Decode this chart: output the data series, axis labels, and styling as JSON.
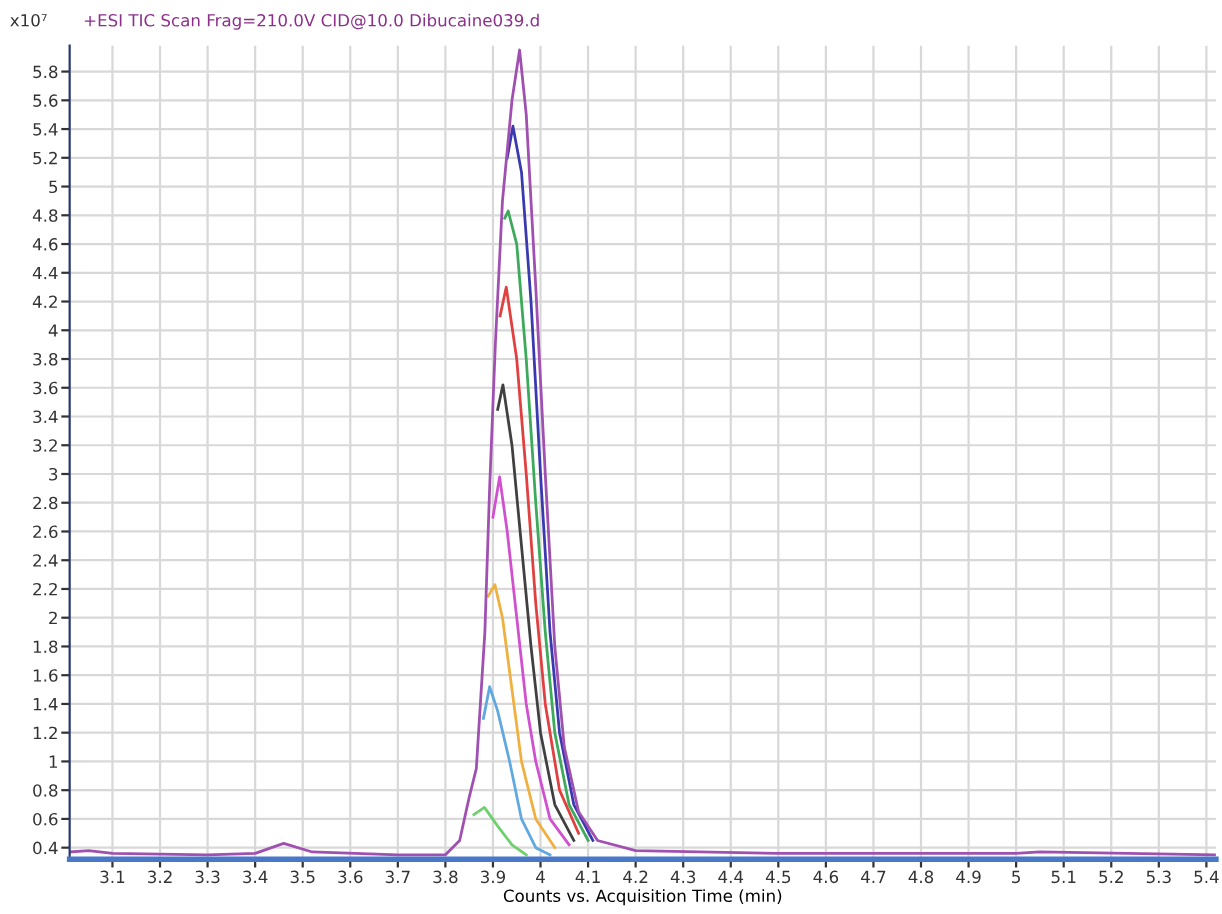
{
  "chart_data": {
    "type": "line",
    "title": "+ESI TIC Scan Frag=210.0V CID@10.0 Dibucaine039.d",
    "ylabel": "x10⁷",
    "xlabel": "Counts vs. Acquisition Time (min)",
    "xlim": [
      3.01,
      5.42
    ],
    "ylim": [
      0.32,
      5.98
    ],
    "xticks": [
      3.1,
      3.2,
      3.3,
      3.4,
      3.5,
      3.6,
      3.7,
      3.8,
      3.9,
      4,
      4.1,
      4.2,
      4.3,
      4.4,
      4.5,
      4.6,
      4.7,
      4.8,
      4.9,
      5,
      5.1,
      5.2,
      5.3,
      5.4
    ],
    "yticks": [
      0.4,
      0.6,
      0.8,
      1,
      1.2,
      1.4,
      1.6,
      1.8,
      2,
      2.2,
      2.4,
      2.6,
      2.8,
      3,
      3.2,
      3.4,
      3.6,
      3.8,
      4,
      4.2,
      4.4,
      4.6,
      4.8,
      5,
      5.2,
      5.4,
      5.6,
      5.8
    ],
    "grid": true,
    "legend": false,
    "marker": "none",
    "line_style": "solid",
    "series": [
      {
        "color": "#70d070",
        "x": [
          3.86,
          3.882,
          3.91,
          3.94,
          3.97
        ],
        "values": [
          0.63,
          0.68,
          0.55,
          0.42,
          0.35
        ]
      },
      {
        "color": "#60a8e0",
        "x": [
          3.88,
          3.893,
          3.91,
          3.935,
          3.96,
          3.99,
          4.02
        ],
        "values": [
          1.3,
          1.52,
          1.35,
          1.0,
          0.6,
          0.4,
          0.35
        ]
      },
      {
        "color": "#f0b040",
        "x": [
          3.89,
          3.904,
          3.92,
          3.94,
          3.96,
          3.99,
          4.03
        ],
        "values": [
          2.15,
          2.23,
          2.0,
          1.5,
          1.0,
          0.6,
          0.4
        ]
      },
      {
        "color": "#d050d0",
        "x": [
          3.9,
          3.914,
          3.93,
          3.95,
          3.97,
          3.99,
          4.02,
          4.06
        ],
        "values": [
          2.7,
          2.98,
          2.6,
          2.0,
          1.4,
          1.0,
          0.6,
          0.42
        ]
      },
      {
        "color": "#404040",
        "x": [
          3.91,
          3.921,
          3.94,
          3.96,
          3.98,
          4.0,
          4.03,
          4.07
        ],
        "values": [
          3.45,
          3.62,
          3.2,
          2.5,
          1.8,
          1.2,
          0.7,
          0.45
        ]
      },
      {
        "color": "#e04040",
        "x": [
          3.915,
          3.928,
          3.95,
          3.97,
          3.99,
          4.01,
          4.04,
          4.08
        ],
        "values": [
          4.1,
          4.3,
          3.8,
          3.0,
          2.1,
          1.4,
          0.8,
          0.5
        ]
      },
      {
        "color": "#3caa5a",
        "x": [
          3.925,
          3.932,
          3.95,
          3.97,
          3.99,
          4.01,
          4.03,
          4.06,
          4.1
        ],
        "values": [
          4.78,
          4.83,
          4.6,
          3.8,
          2.8,
          1.9,
          1.2,
          0.7,
          0.45
        ]
      },
      {
        "color": "#3a3ab0",
        "x": [
          3.93,
          3.942,
          3.96,
          3.98,
          4.0,
          4.02,
          4.04,
          4.07,
          4.11
        ],
        "values": [
          5.2,
          5.42,
          5.1,
          4.2,
          3.0,
          1.9,
          1.2,
          0.7,
          0.45
        ]
      },
      {
        "color": "#a050b0",
        "x": [
          3.01,
          3.05,
          3.1,
          3.3,
          3.4,
          3.46,
          3.52,
          3.7,
          3.8,
          3.83,
          3.85,
          3.865,
          3.883,
          3.893,
          3.905,
          3.92,
          3.94,
          3.956,
          3.97,
          3.99,
          4.01,
          4.03,
          4.05,
          4.08,
          4.12,
          4.2,
          4.5,
          5.0,
          5.05,
          5.42
        ],
        "values": [
          0.37,
          0.38,
          0.36,
          0.35,
          0.36,
          0.43,
          0.37,
          0.35,
          0.35,
          0.45,
          0.75,
          0.95,
          1.9,
          2.9,
          3.9,
          4.9,
          5.6,
          5.95,
          5.5,
          4.3,
          3.0,
          1.8,
          1.1,
          0.65,
          0.45,
          0.38,
          0.36,
          0.36,
          0.37,
          0.35
        ]
      }
    ]
  }
}
